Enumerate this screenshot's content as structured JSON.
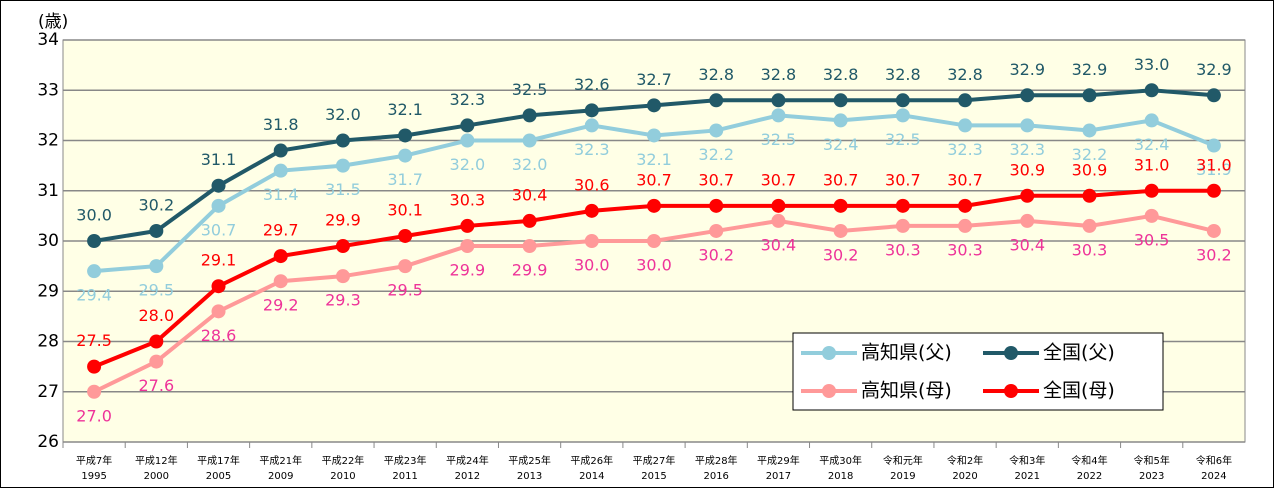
{
  "chart_data": {
    "type": "line",
    "y_label": "(歳)",
    "categories": [
      [
        "平成7年",
        "1995"
      ],
      [
        "平成12年",
        "2000"
      ],
      [
        "平成17年",
        "2005"
      ],
      [
        "平成21年",
        "2009"
      ],
      [
        "平成22年",
        "2010"
      ],
      [
        "平成23年",
        "2011"
      ],
      [
        "平成24年",
        "2012"
      ],
      [
        "平成25年",
        "2013"
      ],
      [
        "平成26年",
        "2014"
      ],
      [
        "平成27年",
        "2015"
      ],
      [
        "平成28年",
        "2016"
      ],
      [
        "平成29年",
        "2017"
      ],
      [
        "平成30年",
        "2018"
      ],
      [
        "令和元年",
        "2019"
      ],
      [
        "令和2年",
        "2020"
      ],
      [
        "令和3年",
        "2021"
      ],
      [
        "令和4年",
        "2022"
      ],
      [
        "令和5年",
        "2023"
      ],
      [
        "令和6年",
        "2024"
      ]
    ],
    "ylim": [
      26,
      34
    ],
    "yticks": [
      26,
      27,
      28,
      29,
      30,
      31,
      32,
      33,
      34
    ],
    "grid": true,
    "legend": "lower right",
    "series": [
      {
        "name": "高知県(父)",
        "color": "#92cddc",
        "label_color": "#92cddc",
        "label_position": "below",
        "values": [
          29.4,
          29.5,
          30.7,
          31.4,
          31.5,
          31.7,
          32.0,
          32.0,
          32.3,
          32.1,
          32.2,
          32.5,
          32.4,
          32.5,
          32.3,
          32.3,
          32.2,
          32.4,
          31.9
        ],
        "value_labels": [
          "29.4",
          "29.5",
          "30.7",
          "31.4",
          "31.5",
          "31.7",
          "32.0",
          "32.0",
          "32.3",
          "32.1",
          "32.2",
          "32.5",
          "32.4",
          "32.5",
          "32.3",
          "32.3",
          "32.2",
          "32.4",
          "31.9"
        ]
      },
      {
        "name": "全国(父)",
        "color": "#215968",
        "label_color": "#215968",
        "label_position": "above",
        "values": [
          30.0,
          30.2,
          31.1,
          31.8,
          32.0,
          32.1,
          32.3,
          32.5,
          32.6,
          32.7,
          32.8,
          32.8,
          32.8,
          32.8,
          32.8,
          32.9,
          32.9,
          33.0,
          32.9
        ],
        "value_labels": [
          "30.0",
          "30.2",
          "31.1",
          "31.8",
          "32.0",
          "32.1",
          "32.3",
          "32.5",
          "32.6",
          "32.7",
          "32.8",
          "32.8",
          "32.8",
          "32.8",
          "32.8",
          "32.9",
          "32.9",
          "33.0",
          "32.9"
        ]
      },
      {
        "name": "高知県(母)",
        "color": "#ff9999",
        "label_color": "#ee3399",
        "label_position": "below",
        "values": [
          27.0,
          27.6,
          28.6,
          29.2,
          29.3,
          29.5,
          29.9,
          29.9,
          30.0,
          30.0,
          30.2,
          30.4,
          30.2,
          30.3,
          30.3,
          30.4,
          30.3,
          30.5,
          30.2
        ],
        "value_labels": [
          "27.0",
          "27.6",
          "28.6",
          "29.2",
          "29.3",
          "29.5",
          "29.9",
          "29.9",
          "30.0",
          "30.0",
          "30.2",
          "30.4",
          "30.2",
          "30.3",
          "30.3",
          "30.4",
          "30.3",
          "30.5",
          "30.2"
        ]
      },
      {
        "name": "全国(母)",
        "color": "#ff0000",
        "label_color": "#ff0000",
        "label_position": "above",
        "values": [
          27.5,
          28.0,
          29.1,
          29.7,
          29.9,
          30.1,
          30.3,
          30.4,
          30.6,
          30.7,
          30.7,
          30.7,
          30.7,
          30.7,
          30.7,
          30.9,
          30.9,
          31.0,
          31.0
        ],
        "value_labels": [
          "27.5",
          "28.0",
          "29.1",
          "29.7",
          "29.9",
          "30.1",
          "30.3",
          "30.4",
          "30.6",
          "30.7",
          "30.7",
          "30.7",
          "30.7",
          "30.7",
          "30.7",
          "30.9",
          "30.9",
          "31.0",
          "31.0"
        ]
      }
    ]
  }
}
